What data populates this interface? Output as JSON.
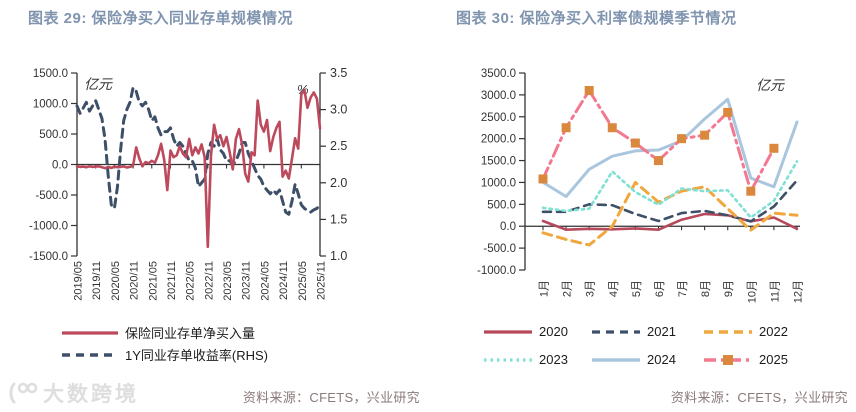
{
  "watermark": {
    "text": "大数跨境"
  },
  "colors": {
    "title": "#8094af",
    "source": "#8a7a7a",
    "axis": "#333333"
  },
  "chart_data": [
    {
      "type": "line",
      "title": "图表 29: 保险净买入同业存单规模情况",
      "unit_left": "亿元",
      "unit_right": "%",
      "source": "资料来源：CFETS，兴业研究",
      "x_tick_labels": [
        "2019/05",
        "2019/11",
        "2020/05",
        "2020/11",
        "2021/05",
        "2021/11",
        "2022/05",
        "2022/11",
        "2023/05",
        "2023/11",
        "2024/05",
        "2024/11",
        "2025/05",
        "2025/11"
      ],
      "left_ticks": [
        "1500.0",
        "1000.0",
        "500.0",
        "0.0",
        "-500.0",
        "-1000.0",
        "-1500.0"
      ],
      "right_ticks": [
        "3.5",
        "3.0",
        "2.5",
        "2.0",
        "1.5",
        "1.0"
      ],
      "axes": {
        "left_min": -1500,
        "left_max": 1500,
        "right_min": 1.0,
        "right_max": 3.5,
        "x_start": "2019/05",
        "x_end": "2025/11",
        "x_points_monthly": 79
      },
      "series": [
        {
          "name": "保险同业存单净买入量",
          "axis": "left",
          "color": "#bc4a5c",
          "dash": null,
          "width": 2.6,
          "values": [
            -30,
            -40,
            -35,
            -45,
            -30,
            -40,
            -35,
            -30,
            -45,
            -60,
            -40,
            -55,
            -35,
            -45,
            -40,
            -30,
            -50,
            -40,
            -20,
            280,
            100,
            -30,
            40,
            20,
            60,
            30,
            150,
            340,
            80,
            -420,
            230,
            120,
            150,
            300,
            180,
            120,
            420,
            150,
            280,
            180,
            330,
            120,
            -1350,
            150,
            650,
            420,
            480,
            300,
            450,
            200,
            -80,
            420,
            580,
            330,
            -150,
            -280,
            200,
            150,
            1050,
            650,
            540,
            730,
            220,
            450,
            600,
            700,
            -200,
            -100,
            -230,
            100,
            430,
            260,
            1150,
            1220,
            930,
            1100,
            1180,
            1080,
            590
          ]
        },
        {
          "name": "1Y同业存单收益率(RHS)",
          "axis": "right",
          "color": "#3e5068",
          "dash": "8 6",
          "width": 3,
          "values": [
            3.05,
            2.95,
            3.02,
            3.1,
            2.98,
            3.05,
            3.12,
            3.0,
            2.88,
            2.6,
            2.1,
            1.7,
            1.65,
            1.95,
            2.45,
            2.85,
            3.0,
            3.1,
            3.3,
            3.25,
            3.1,
            3.05,
            3.1,
            3.0,
            2.85,
            2.9,
            2.75,
            2.65,
            2.7,
            2.7,
            2.75,
            2.6,
            2.5,
            2.55,
            2.5,
            2.4,
            2.3,
            2.3,
            2.2,
            1.95,
            2.0,
            2.05,
            2.4,
            2.55,
            2.5,
            2.6,
            2.45,
            2.4,
            2.3,
            2.3,
            2.25,
            2.3,
            2.4,
            2.55,
            2.55,
            2.4,
            2.3,
            2.2,
            2.1,
            2.05,
            1.95,
            1.9,
            1.85,
            1.9,
            1.85,
            1.9,
            1.75,
            1.6,
            1.57,
            1.75,
            1.98,
            1.85,
            1.7,
            1.65,
            1.62,
            1.6,
            1.63,
            1.65,
            1.7
          ]
        }
      ]
    },
    {
      "type": "line",
      "title": "图表 30: 保险净买入利率债规模季节情况",
      "unit": "亿元",
      "source": "资料来源：CFETS，兴业研究",
      "x_labels": [
        "1月",
        "2月",
        "3月",
        "4月",
        "5月",
        "6月",
        "7月",
        "8月",
        "9月",
        "10月",
        "11月",
        "12月"
      ],
      "y_ticks": [
        "3500.0",
        "3000.0",
        "2500.0",
        "2000.0",
        "1500.0",
        "1000.0",
        "500.0",
        "0.0",
        "-500.0",
        "-1000.0"
      ],
      "axes": {
        "min": -1000,
        "max": 3500
      },
      "series": [
        {
          "name": "2020",
          "color": "#b6495b",
          "dash": null,
          "width": 2.6,
          "values": [
            120,
            -80,
            -60,
            -70,
            -50,
            -80,
            150,
            280,
            250,
            110,
            200,
            -60
          ]
        },
        {
          "name": "2021",
          "color": "#3e5068",
          "dash": "8 6",
          "width": 2.6,
          "values": [
            330,
            330,
            500,
            480,
            280,
            120,
            300,
            350,
            250,
            110,
            450,
            1050
          ]
        },
        {
          "name": "2022",
          "color": "#efa73e",
          "dash": "9 6",
          "width": 3,
          "values": [
            -150,
            -300,
            -430,
            0,
            1000,
            550,
            800,
            900,
            400,
            -90,
            300,
            250
          ]
        },
        {
          "name": "2023",
          "color": "#7fe0d4",
          "dash": "2.5 4",
          "width": 2.6,
          "values": [
            420,
            350,
            400,
            1250,
            780,
            490,
            860,
            800,
            820,
            200,
            580,
            1480
          ]
        },
        {
          "name": "2024",
          "color": "#a9c6de",
          "dash": null,
          "width": 3,
          "values": [
            1000,
            680,
            1300,
            1600,
            1720,
            1740,
            1950,
            2450,
            2900,
            1100,
            900,
            2380
          ]
        },
        {
          "name": "2025",
          "color": "#f2798f",
          "dash": "12 5 3 5",
          "width": 3,
          "marker": "#d9883d",
          "values": [
            1080,
            2250,
            3100,
            2250,
            1900,
            1500,
            2000,
            2080,
            2600,
            800,
            1780,
            null
          ]
        }
      ]
    }
  ]
}
